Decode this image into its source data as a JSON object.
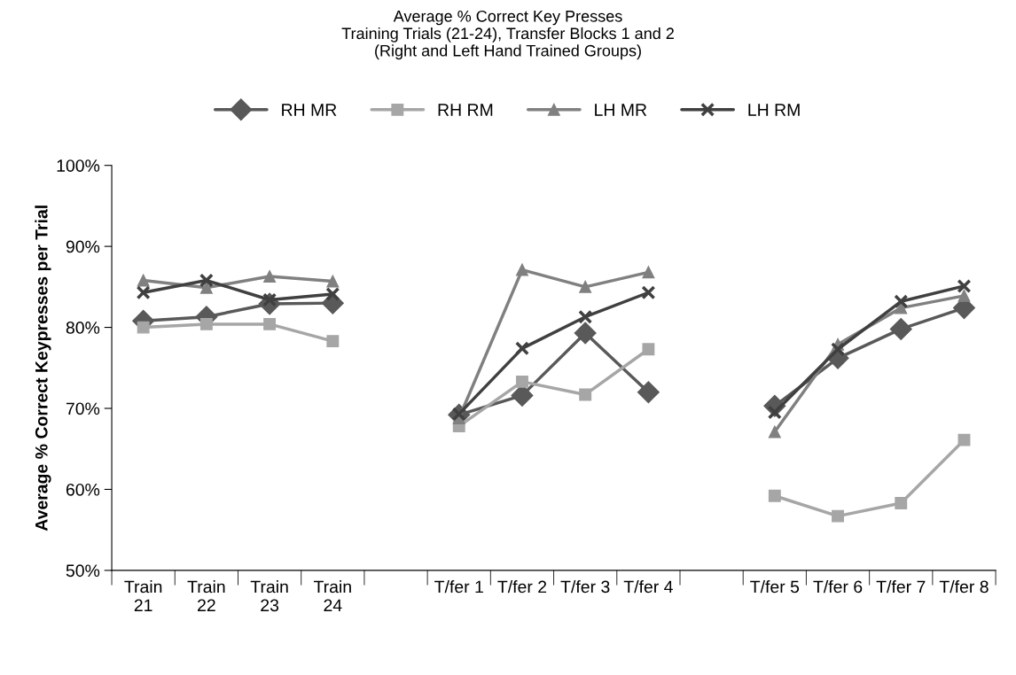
{
  "chart_data": {
    "type": "line",
    "title": "Average % Correct Key Presses\nTraining Trials (21-24), Transfer Blocks 1 and 2\n(Right and Left Hand Trained Groups)",
    "ylabel": "Average % Correct Keypresses per Trial",
    "categories": [
      "Train\n21",
      "Train\n22",
      "Train\n23",
      "Train\n24",
      null,
      "T/fer 1",
      "T/fer 2",
      "T/fer 3",
      "T/fer 4",
      null,
      "T/fer 5",
      "T/fer 6",
      "T/fer 7",
      "T/fer 8"
    ],
    "series": [
      {
        "name": "RH MR",
        "color": "#595959",
        "marker": "diamond",
        "values": [
          80.8,
          81.3,
          82.9,
          83.0,
          null,
          69.2,
          71.6,
          79.3,
          72.0,
          null,
          70.3,
          76.2,
          79.8,
          82.4
        ]
      },
      {
        "name": "RH RM",
        "color": "#a6a6a6",
        "marker": "square",
        "values": [
          80.0,
          80.4,
          80.4,
          78.3,
          null,
          67.8,
          73.3,
          71.7,
          77.3,
          null,
          59.2,
          56.7,
          58.3,
          66.1
        ]
      },
      {
        "name": "LH MR",
        "color": "#808080",
        "marker": "triangle",
        "values": [
          85.8,
          84.9,
          86.3,
          85.7,
          null,
          68.8,
          87.1,
          85.0,
          86.8,
          null,
          67.1,
          77.9,
          82.4,
          83.9
        ]
      },
      {
        "name": "LH RM",
        "color": "#404040",
        "marker": "cross",
        "values": [
          84.3,
          85.8,
          83.4,
          84.1,
          null,
          69.3,
          77.4,
          81.3,
          84.3,
          null,
          69.5,
          77.3,
          83.2,
          85.1
        ]
      }
    ],
    "ylim": [
      50,
      100
    ],
    "yticks": [
      {
        "value": 50,
        "label": "50%"
      },
      {
        "value": 60,
        "label": "60%"
      },
      {
        "value": 70,
        "label": "70%"
      },
      {
        "value": 80,
        "label": "80%"
      },
      {
        "value": 90,
        "label": "90%"
      },
      {
        "value": 100,
        "label": "100%"
      }
    ],
    "grid": false,
    "legend": "top",
    "line_style": "solid"
  }
}
